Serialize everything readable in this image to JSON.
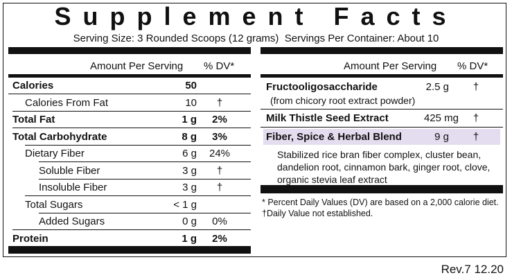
{
  "title": "Supplement Facts",
  "serving_line": "Serving Size: 3 Rounded Scoops (12 grams)  Servings Per Container: About 10",
  "left_panel": {
    "header": {
      "amount": "Amount Per Serving",
      "dv": "% DV*"
    },
    "rows": [
      {
        "name": "Calories",
        "amount": "50"
      },
      {
        "name": "Calories From Fat",
        "amount": "10",
        "dv": "†"
      },
      {
        "name": "Total Fat",
        "amount": "1 g",
        "dv": "2%"
      },
      {
        "name": "Total Carbohydrate",
        "amount": "8 g",
        "dv": "3%"
      },
      {
        "name": "Dietary Fiber",
        "amount": "6 g",
        "dv": "24%"
      },
      {
        "name": "Soluble Fiber",
        "amount": "3 g",
        "dv": "†"
      },
      {
        "name": "Insoluble Fiber",
        "amount": "3 g",
        "dv": "†"
      },
      {
        "name": "Total Sugars",
        "amount": "< 1 g"
      },
      {
        "name": "Added Sugars",
        "amount": "0 g",
        "dv": "0%"
      },
      {
        "name": "Protein",
        "amount": "1 g",
        "dv": "2%"
      }
    ]
  },
  "right_panel": {
    "header": {
      "amount": "Amount Per Serving",
      "dv": "% DV*"
    },
    "rows": [
      {
        "name": "Fructooligosaccharide",
        "amount": "2.5 g",
        "dv": "†",
        "note": "(from chicory root extract powder)"
      },
      {
        "name": "Milk Thistle Seed Extract",
        "amount": "425 mg",
        "dv": "†"
      },
      {
        "name": "Fiber, Spice & Herbal Blend",
        "amount": "9 g",
        "dv": "†",
        "ingredients": "Stabilized rice bran fiber complex, cluster bean, dandelion root, cinnamon bark, ginger root, clove, organic stevia leaf extract"
      }
    ],
    "footnotes": [
      "* Percent Daily Values (DV) are based on a 2,000 calorie diet.",
      "†Daily Value not established."
    ]
  },
  "revision": "Rev.7 12.20"
}
